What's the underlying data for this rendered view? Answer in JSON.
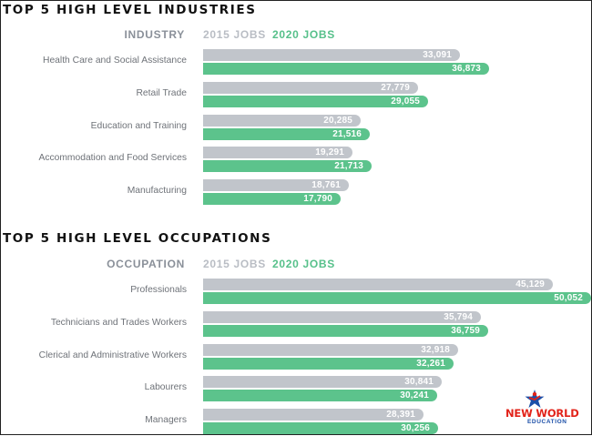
{
  "sections": [
    {
      "title": "TOP 5 HIGH LEVEL INDUSTRIES",
      "lead": "INDUSTRY",
      "legend_2015": "2015 JOBS",
      "legend_2020": "2020 JOBS"
    },
    {
      "title": "TOP 5 HIGH LEVEL OCCUPATIONS",
      "lead": "OCCUPATION",
      "legend_2015": "2015 JOBS",
      "legend_2020": "2020 JOBS"
    }
  ],
  "chart_data": [
    {
      "type": "bar",
      "orientation": "horizontal",
      "title": "TOP 5 HIGH LEVEL INDUSTRIES",
      "categories": [
        "Health Care and Social Assistance",
        "Retail Trade",
        "Education and Training",
        "Accommodation and Food Services",
        "Manufacturing"
      ],
      "series": [
        {
          "name": "2015 JOBS",
          "color": "#c1c5cb",
          "values": [
            33091,
            27779,
            20285,
            19291,
            18761
          ],
          "labels": [
            "33,091",
            "27,779",
            "20,285",
            "19,291",
            "18,761"
          ]
        },
        {
          "name": "2020 JOBS",
          "color": "#5cc38c",
          "values": [
            36873,
            29055,
            21516,
            21713,
            17790
          ],
          "labels": [
            "36,873",
            "29,055",
            "21,516",
            "21,713",
            "17,790"
          ]
        }
      ]
    },
    {
      "type": "bar",
      "orientation": "horizontal",
      "title": "TOP 5 HIGH LEVEL OCCUPATIONS",
      "categories": [
        "Professionals",
        "Technicians and Trades Workers",
        "Clerical and Administrative Workers",
        "Labourers",
        "Managers"
      ],
      "series": [
        {
          "name": "2015 JOBS",
          "color": "#c1c5cb",
          "values": [
            45129,
            35794,
            32918,
            30841,
            28391
          ],
          "labels": [
            "45,129",
            "35,794",
            "32,918",
            "30,841",
            "28,391"
          ]
        },
        {
          "name": "2020 JOBS",
          "color": "#5cc38c",
          "values": [
            50052,
            36759,
            32261,
            30241,
            30256
          ],
          "labels": [
            "50,052",
            "36,759",
            "32,261",
            "30,241",
            "30,256"
          ]
        }
      ]
    }
  ],
  "logo": {
    "name": "NEW WORLD",
    "sub": "EDUCATION",
    "colors": {
      "primary": "#e2231a",
      "secondary": "#1c4fa8"
    }
  }
}
